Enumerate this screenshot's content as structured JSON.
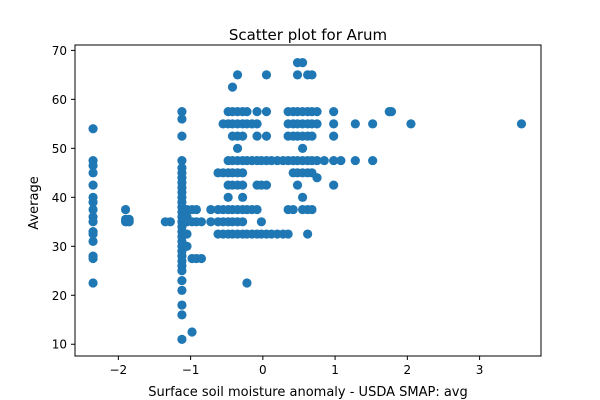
{
  "chart_data": {
    "type": "scatter",
    "title": "Scatter plot for Arum",
    "xlabel": "Surface soil moisture anomaly  - USDA SMAP: avg",
    "ylabel": "Average",
    "xlim": [
      -2.6,
      3.85
    ],
    "ylim": [
      7.6,
      71.1
    ],
    "xticks": [
      -2,
      -1,
      0,
      1,
      2,
      3
    ],
    "yticks": [
      10,
      20,
      30,
      40,
      50,
      60,
      70
    ],
    "xtick_labels": [
      "−2",
      "−1",
      "0",
      "1",
      "2",
      "3"
    ],
    "ytick_labels": [
      "10",
      "20",
      "30",
      "40",
      "50",
      "60",
      "70"
    ],
    "grid": false,
    "point_color": "#1f77b4",
    "columns": [
      {
        "x": -2.35,
        "y": [
          54,
          47.5,
          46.5,
          45,
          42.5,
          40,
          39,
          37.5,
          36,
          35,
          33,
          32.5,
          31,
          28,
          27.5,
          22.5
        ]
      },
      {
        "x": -1.9,
        "y": [
          37.5,
          35.5,
          35
        ]
      },
      {
        "x": -1.85,
        "y": [
          35.5,
          35
        ]
      },
      {
        "x": -1.35,
        "y": [
          35
        ]
      },
      {
        "x": -1.28,
        "y": [
          35
        ]
      },
      {
        "x": -1.12,
        "y": [
          57.5,
          56,
          52.5,
          47.5,
          46,
          45,
          44,
          43,
          42,
          41,
          40,
          39,
          38,
          37,
          36,
          35,
          34,
          33,
          32,
          31,
          30,
          29,
          28,
          27,
          26,
          25,
          23,
          21,
          18,
          16,
          11
        ]
      },
      {
        "x": -1.05,
        "y": [
          37.5,
          36,
          35,
          32.5,
          30
        ]
      },
      {
        "x": -0.98,
        "y": [
          37.5,
          35,
          27.5,
          12.5
        ]
      },
      {
        "x": -0.92,
        "y": [
          37.5,
          35,
          27.5
        ]
      },
      {
        "x": -0.85,
        "y": [
          35,
          27.5
        ]
      },
      {
        "x": -0.72,
        "y": [
          37.5,
          35
        ]
      },
      {
        "x": -0.62,
        "y": [
          45,
          37.5,
          35,
          32.5
        ]
      },
      {
        "x": -0.55,
        "y": [
          55,
          45,
          37.5,
          35,
          32.5
        ]
      },
      {
        "x": -0.48,
        "y": [
          57.5,
          55,
          47.5,
          45,
          42.5,
          40,
          37.5,
          35,
          32.5
        ]
      },
      {
        "x": -0.42,
        "y": [
          62.5,
          57.5,
          55,
          52.5,
          47.5,
          45,
          42.5,
          37.5,
          35,
          32.5
        ]
      },
      {
        "x": -0.35,
        "y": [
          65,
          57.5,
          55,
          52.5,
          50,
          47.5,
          45,
          42.5,
          37.5,
          35,
          32.5
        ]
      },
      {
        "x": -0.28,
        "y": [
          57.5,
          55,
          52.5,
          47.5,
          45,
          42.5,
          40,
          37.5,
          35,
          32.5
        ]
      },
      {
        "x": -0.22,
        "y": [
          57.5,
          55,
          47.5,
          37.5,
          32.5,
          22.5
        ]
      },
      {
        "x": -0.15,
        "y": [
          55,
          47.5,
          37.5,
          32.5
        ]
      },
      {
        "x": -0.08,
        "y": [
          57.5,
          55,
          52.5,
          47.5,
          42.5,
          37.5,
          32.5
        ]
      },
      {
        "x": -0.02,
        "y": [
          47.5,
          42.5,
          35,
          32.5
        ]
      },
      {
        "x": 0.05,
        "y": [
          65,
          57.5,
          52.5,
          47.5,
          42.5,
          32.5
        ]
      },
      {
        "x": 0.12,
        "y": [
          47.5,
          32.5
        ]
      },
      {
        "x": 0.2,
        "y": [
          47.5,
          32.5
        ]
      },
      {
        "x": 0.28,
        "y": [
          47.5,
          32.5
        ]
      },
      {
        "x": 0.35,
        "y": [
          57.5,
          55,
          52.5,
          47.5,
          37.5,
          32.5
        ]
      },
      {
        "x": 0.42,
        "y": [
          57.5,
          55,
          52.5,
          47.5,
          45,
          37.5
        ]
      },
      {
        "x": 0.48,
        "y": [
          67.5,
          65,
          57.5,
          55,
          52.5,
          47.5,
          45,
          42.5
        ]
      },
      {
        "x": 0.55,
        "y": [
          67.5,
          57.5,
          55,
          52.5,
          50,
          47.5,
          45,
          40,
          37.5
        ]
      },
      {
        "x": 0.62,
        "y": [
          65,
          57.5,
          55,
          52.5,
          47.5,
          45,
          37.5,
          32.5
        ]
      },
      {
        "x": 0.68,
        "y": [
          65,
          57.5,
          55,
          52.5,
          47.5,
          45,
          37.5
        ]
      },
      {
        "x": 0.75,
        "y": [
          57.5,
          55,
          47.5,
          44
        ]
      },
      {
        "x": 0.85,
        "y": [
          47.5
        ]
      },
      {
        "x": 0.98,
        "y": [
          57.5,
          55,
          52.5,
          47.5,
          42.5
        ]
      },
      {
        "x": 1.08,
        "y": [
          47.5
        ]
      },
      {
        "x": 1.28,
        "y": [
          55,
          47.5
        ]
      },
      {
        "x": 1.52,
        "y": [
          55,
          47.5
        ]
      },
      {
        "x": 1.75,
        "y": [
          57.5
        ]
      },
      {
        "x": 1.78,
        "y": [
          57.5
        ]
      },
      {
        "x": 2.05,
        "y": [
          55
        ]
      },
      {
        "x": 3.58,
        "y": [
          55
        ]
      }
    ]
  }
}
